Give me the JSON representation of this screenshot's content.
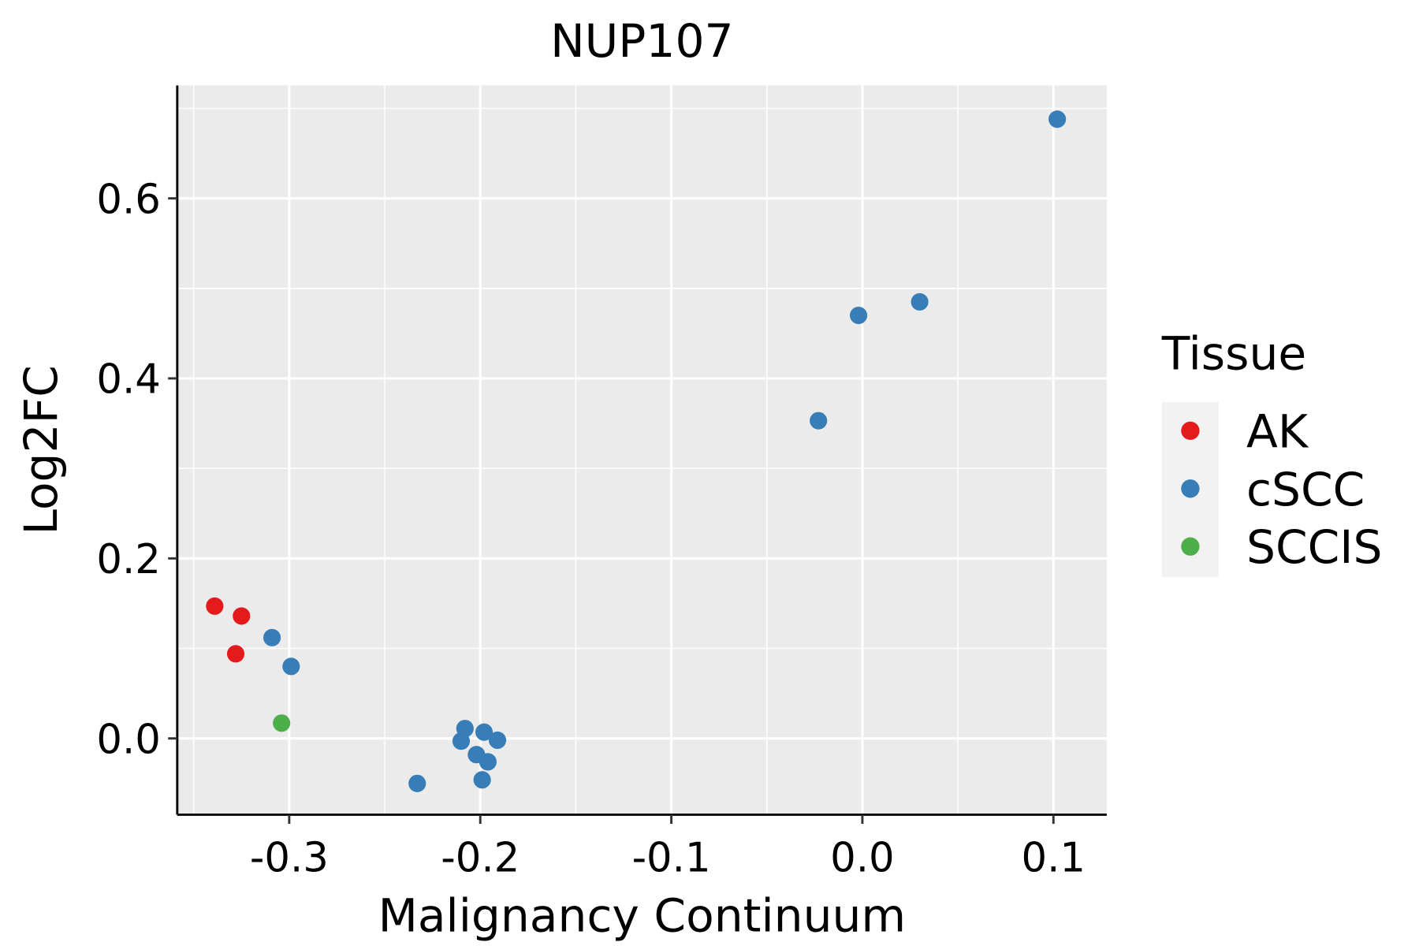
{
  "chart_data": {
    "type": "scatter",
    "title": "NUP107",
    "xlabel": "Malignancy Continuum",
    "ylabel": "Log2FC",
    "xlim": [
      -0.3586,
      0.1279
    ],
    "ylim": [
      -0.0847,
      0.7255
    ],
    "xticks": [
      -0.3,
      -0.2,
      -0.1,
      0.0,
      0.1
    ],
    "xtick_labels": [
      "-0.3",
      "-0.2",
      "-0.1",
      "0.0",
      "0.1"
    ],
    "yticks": [
      0.0,
      0.2,
      0.4,
      0.6
    ],
    "ytick_labels": [
      "0.0",
      "0.2",
      "0.4",
      "0.6"
    ],
    "grid": true,
    "legend": {
      "title": "Tissue",
      "placement": "right"
    },
    "series": [
      {
        "name": "AK",
        "color": "#E41A1C",
        "points": [
          [
            -0.339,
            0.147
          ],
          [
            -0.325,
            0.136
          ],
          [
            -0.328,
            0.094
          ]
        ]
      },
      {
        "name": "cSCC",
        "color": "#377EB8",
        "points": [
          [
            -0.309,
            0.112
          ],
          [
            -0.299,
            0.08
          ],
          [
            -0.233,
            -0.05
          ],
          [
            -0.208,
            0.011
          ],
          [
            -0.21,
            -0.003
          ],
          [
            -0.198,
            0.007
          ],
          [
            -0.191,
            -0.002
          ],
          [
            -0.202,
            -0.018
          ],
          [
            -0.196,
            -0.026
          ],
          [
            -0.199,
            -0.046
          ],
          [
            -0.023,
            0.353
          ],
          [
            -0.002,
            0.47
          ],
          [
            0.03,
            0.485
          ],
          [
            0.102,
            0.688
          ]
        ]
      },
      {
        "name": "SCCIS",
        "color": "#4DAF4A",
        "points": [
          [
            -0.304,
            0.017
          ]
        ]
      }
    ]
  }
}
